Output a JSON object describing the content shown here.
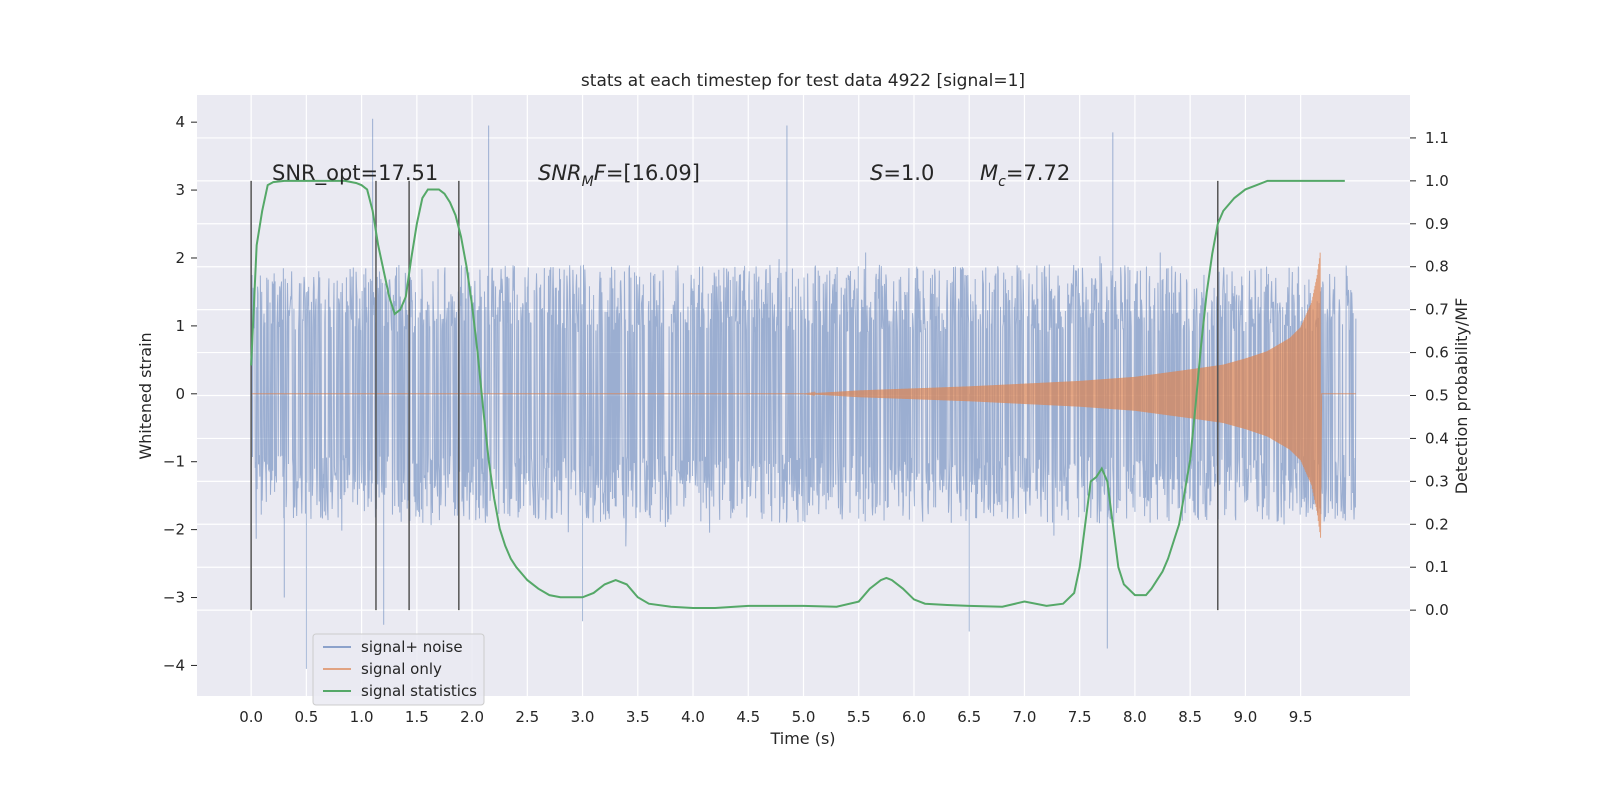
{
  "chart_data": {
    "type": "line",
    "title": "stats at each timestep for test data 4922 [signal=1]",
    "xlabel": "Time (s)",
    "ylabel": "Whitened strain",
    "y2label": "Detection probability/MF",
    "xlim": [
      -0.49,
      10.49
    ],
    "ylim": [
      -4.45,
      4.4
    ],
    "y2lim": [
      -0.2,
      1.2
    ],
    "x_ticks": [
      "0.0",
      "0.5",
      "1.0",
      "1.5",
      "2.0",
      "2.5",
      "3.0",
      "3.5",
      "4.0",
      "4.5",
      "5.0",
      "5.5",
      "6.0",
      "6.5",
      "7.0",
      "7.5",
      "8.0",
      "8.5",
      "9.0",
      "9.5"
    ],
    "y_ticks": [
      "−4",
      "−3",
      "−2",
      "−1",
      "0",
      "1",
      "2",
      "3",
      "4"
    ],
    "y2_ticks": [
      "0.0",
      "0.1",
      "0.2",
      "0.3",
      "0.4",
      "0.5",
      "0.6",
      "0.7",
      "0.8",
      "0.9",
      "1.0",
      "1.1"
    ],
    "grid": true,
    "legend_position": "lower-left",
    "annotations": {
      "snr_opt": "SNR_opt=17.51",
      "snr_mf_var": "SNR",
      "snr_mf_sub": "M",
      "snr_mf_var2": "F",
      "snr_mf_val": "=[16.09]",
      "s_var": "S",
      "s_val": "=1.0",
      "mc_var": "M",
      "mc_sub": "c",
      "mc_val": "=7.72"
    },
    "event_markers_x": [
      0.0,
      1.13,
      1.43,
      1.88,
      8.75
    ],
    "series": [
      {
        "name": "signal+ noise",
        "color": "#4c72b0",
        "axis": "left",
        "kind": "noise_band",
        "x_range": [
          0.0,
          10.0
        ],
        "band_typical": [
          -1.9,
          1.9
        ],
        "extremes": [
          [
            0.3,
            -3.0
          ],
          [
            0.5,
            -4.05
          ],
          [
            1.1,
            4.05
          ],
          [
            2.15,
            3.95
          ],
          [
            3.0,
            -3.35
          ],
          [
            4.85,
            3.95
          ],
          [
            7.75,
            -3.75
          ],
          [
            7.8,
            3.85
          ],
          [
            6.5,
            -3.5
          ],
          [
            1.2,
            -3.4
          ]
        ]
      },
      {
        "name": "signal only",
        "color": "#dd8452",
        "axis": "left",
        "kind": "chirp",
        "x": [
          5.0,
          5.5,
          6.0,
          6.5,
          7.0,
          7.5,
          8.0,
          8.5,
          8.8,
          9.0,
          9.2,
          9.4,
          9.5,
          9.6,
          9.65,
          9.68
        ],
        "envelope": [
          0.0,
          0.05,
          0.08,
          0.11,
          0.15,
          0.19,
          0.25,
          0.36,
          0.43,
          0.52,
          0.63,
          0.82,
          0.98,
          1.35,
          1.75,
          2.12
        ]
      },
      {
        "name": "signal statistics",
        "color": "#55a868",
        "axis": "right",
        "x": [
          0.0,
          0.05,
          0.1,
          0.15,
          0.2,
          0.3,
          0.5,
          0.7,
          0.85,
          0.95,
          1.0,
          1.05,
          1.1,
          1.15,
          1.2,
          1.25,
          1.3,
          1.35,
          1.4,
          1.45,
          1.5,
          1.55,
          1.6,
          1.65,
          1.7,
          1.75,
          1.8,
          1.85,
          1.9,
          1.95,
          2.0,
          2.05,
          2.1,
          2.15,
          2.2,
          2.25,
          2.3,
          2.35,
          2.4,
          2.5,
          2.6,
          2.7,
          2.8,
          2.9,
          3.0,
          3.1,
          3.2,
          3.3,
          3.4,
          3.5,
          3.6,
          3.8,
          4.0,
          4.2,
          4.5,
          5.0,
          5.3,
          5.5,
          5.6,
          5.7,
          5.75,
          5.8,
          5.9,
          6.0,
          6.1,
          6.3,
          6.5,
          6.8,
          7.0,
          7.2,
          7.35,
          7.45,
          7.5,
          7.55,
          7.6,
          7.65,
          7.7,
          7.75,
          7.8,
          7.85,
          7.9,
          8.0,
          8.1,
          8.15,
          8.2,
          8.25,
          8.3,
          8.4,
          8.5,
          8.55,
          8.6,
          8.65,
          8.7,
          8.75,
          8.8,
          8.9,
          9.0,
          9.1,
          9.2,
          9.3,
          9.5,
          9.7,
          9.9
        ],
        "values": [
          0.57,
          0.85,
          0.93,
          0.99,
          0.997,
          1.0,
          1.0,
          1.0,
          1.0,
          0.995,
          0.99,
          0.98,
          0.93,
          0.85,
          0.79,
          0.73,
          0.69,
          0.7,
          0.73,
          0.82,
          0.9,
          0.96,
          0.98,
          0.98,
          0.98,
          0.97,
          0.95,
          0.92,
          0.87,
          0.8,
          0.71,
          0.6,
          0.47,
          0.35,
          0.26,
          0.19,
          0.15,
          0.12,
          0.1,
          0.07,
          0.05,
          0.035,
          0.03,
          0.03,
          0.03,
          0.04,
          0.06,
          0.07,
          0.06,
          0.03,
          0.015,
          0.008,
          0.005,
          0.005,
          0.01,
          0.01,
          0.008,
          0.02,
          0.05,
          0.07,
          0.075,
          0.07,
          0.05,
          0.025,
          0.015,
          0.012,
          0.01,
          0.008,
          0.02,
          0.01,
          0.015,
          0.04,
          0.1,
          0.2,
          0.3,
          0.31,
          0.33,
          0.3,
          0.2,
          0.1,
          0.06,
          0.035,
          0.035,
          0.05,
          0.07,
          0.09,
          0.12,
          0.2,
          0.35,
          0.48,
          0.62,
          0.74,
          0.83,
          0.9,
          0.93,
          0.96,
          0.98,
          0.99,
          1.0,
          1.0,
          1.0,
          1.0,
          1.0
        ]
      }
    ]
  }
}
